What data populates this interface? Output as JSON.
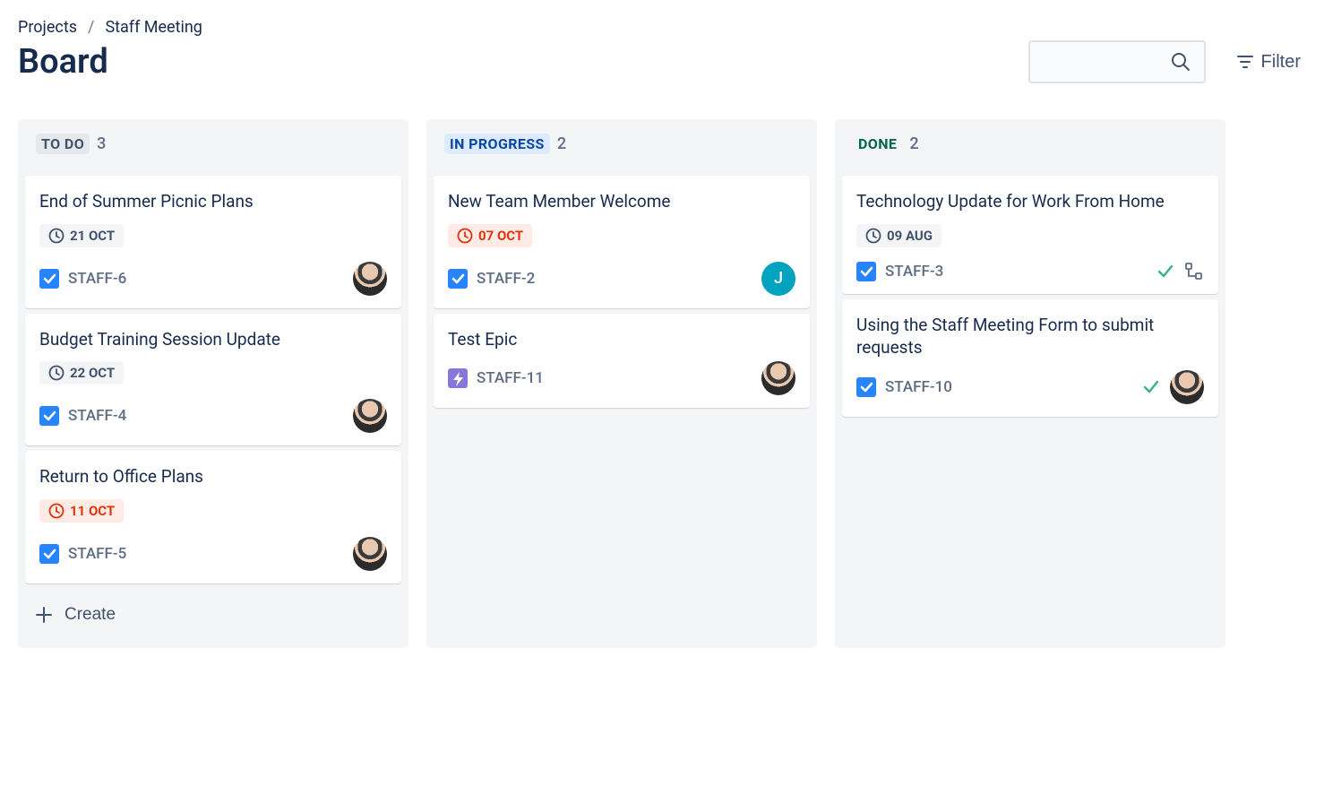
{
  "breadcrumb": {
    "root": "Projects",
    "project": "Staff Meeting"
  },
  "page_title": "Board",
  "filter_label": "Filter",
  "create_label": "Create",
  "columns": [
    {
      "label": "TO DO",
      "status": "todo",
      "count": "3",
      "show_create": true,
      "cards": [
        {
          "title": "End of Summer Picnic Plans",
          "date": "21 OCT",
          "date_status": "normal",
          "issue_type": "task",
          "key": "STAFF-6",
          "assignee": {
            "type": "photo"
          }
        },
        {
          "title": "Budget Training Session Update",
          "date": "22 OCT",
          "date_status": "normal",
          "issue_type": "task",
          "key": "STAFF-4",
          "assignee": {
            "type": "photo"
          }
        },
        {
          "title": "Return to Office Plans",
          "date": "11 OCT",
          "date_status": "overdue",
          "issue_type": "task",
          "key": "STAFF-5",
          "assignee": {
            "type": "photo"
          }
        }
      ]
    },
    {
      "label": "IN PROGRESS",
      "status": "inprogress",
      "count": "2",
      "show_create": false,
      "cards": [
        {
          "title": "New Team Member Welcome",
          "date": "07 OCT",
          "date_status": "overdue",
          "issue_type": "task",
          "key": "STAFF-2",
          "assignee": {
            "type": "initial",
            "initial": "J"
          }
        },
        {
          "title": "Test Epic",
          "date": null,
          "issue_type": "epic",
          "key": "STAFF-11",
          "assignee": {
            "type": "photo"
          }
        }
      ]
    },
    {
      "label": "DONE",
      "status": "done",
      "count": "2",
      "show_create": false,
      "cards": [
        {
          "title": "Technology Update for Work From Home",
          "date": "09 AUG",
          "date_status": "normal",
          "issue_type": "task",
          "key": "STAFF-3",
          "done": true,
          "subtask": true,
          "assignee": null
        },
        {
          "title": "Using the Staff Meeting Form to submit requests",
          "date": null,
          "issue_type": "task",
          "key": "STAFF-10",
          "done": true,
          "assignee": {
            "type": "photo"
          }
        }
      ]
    }
  ]
}
